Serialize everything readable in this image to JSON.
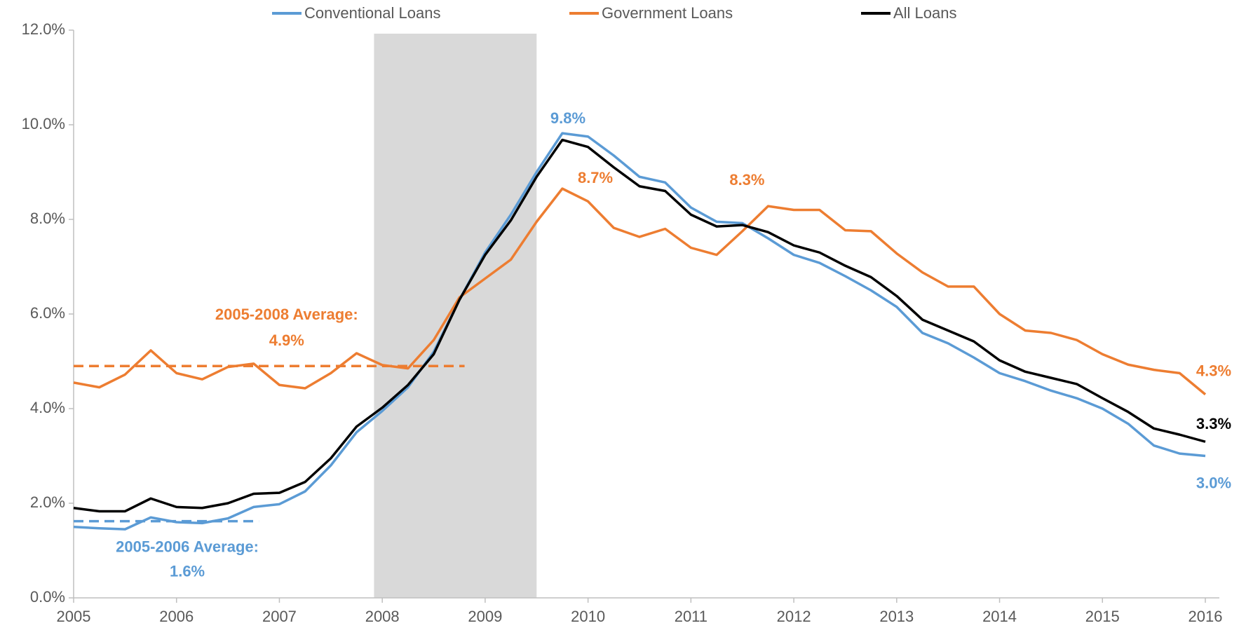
{
  "chart_data": {
    "type": "line",
    "x": [
      2005,
      2005.25,
      2005.5,
      2005.75,
      2006,
      2006.25,
      2006.5,
      2006.75,
      2007,
      2007.25,
      2007.5,
      2007.75,
      2008,
      2008.25,
      2008.5,
      2008.75,
      2009,
      2009.25,
      2009.5,
      2009.75,
      2010,
      2010.25,
      2010.5,
      2010.75,
      2011,
      2011.25,
      2011.5,
      2011.75,
      2012,
      2012.25,
      2012.5,
      2012.75,
      2013,
      2013.25,
      2013.5,
      2013.75,
      2014,
      2014.25,
      2014.5,
      2014.75,
      2015,
      2015.25,
      2015.5,
      2015.75,
      2016
    ],
    "series": [
      {
        "name": "Conventional Loans",
        "color": "#5b9bd5",
        "values": [
          1.5,
          1.47,
          1.45,
          1.7,
          1.6,
          1.58,
          1.68,
          1.92,
          1.98,
          2.25,
          2.8,
          3.5,
          3.95,
          4.45,
          5.2,
          6.3,
          7.3,
          8.1,
          9.0,
          9.82,
          9.75,
          9.35,
          8.9,
          8.78,
          8.25,
          7.95,
          7.92,
          7.6,
          7.25,
          7.08,
          6.8,
          6.5,
          6.15,
          5.6,
          5.38,
          5.08,
          4.75,
          4.58,
          4.38,
          4.22,
          4.0,
          3.68,
          3.22,
          3.05,
          3.0
        ],
        "value_labels": [
          null,
          null,
          null,
          null,
          null,
          null,
          null,
          null,
          null,
          null,
          null,
          null,
          null,
          null,
          null,
          null,
          null,
          null,
          null,
          "9.8%",
          null,
          null,
          null,
          null,
          null,
          null,
          null,
          null,
          null,
          null,
          null,
          null,
          null,
          null,
          null,
          null,
          null,
          null,
          null,
          null,
          null,
          null,
          null,
          null,
          "3.0%"
        ]
      },
      {
        "name": "Government Loans",
        "color": "#ed7d31",
        "values": [
          4.55,
          4.45,
          4.72,
          5.23,
          4.75,
          4.62,
          4.88,
          4.95,
          4.5,
          4.43,
          4.75,
          5.17,
          4.92,
          4.85,
          5.45,
          6.35,
          6.75,
          7.15,
          7.95,
          8.65,
          8.38,
          7.82,
          7.63,
          7.8,
          7.4,
          7.25,
          7.75,
          8.28,
          8.2,
          8.2,
          7.77,
          7.75,
          7.28,
          6.88,
          6.58,
          6.58,
          6.0,
          5.65,
          5.6,
          5.45,
          5.15,
          4.93,
          4.82,
          4.75,
          4.3
        ],
        "value_labels": [
          null,
          null,
          null,
          null,
          null,
          null,
          null,
          null,
          null,
          null,
          null,
          null,
          null,
          null,
          null,
          null,
          null,
          null,
          null,
          "8.7%",
          null,
          null,
          null,
          null,
          null,
          null,
          null,
          "8.3%",
          null,
          null,
          null,
          null,
          null,
          null,
          null,
          null,
          null,
          null,
          null,
          null,
          null,
          null,
          null,
          null,
          "4.3%"
        ]
      },
      {
        "name": "All Loans",
        "color": "#000000",
        "values": [
          1.9,
          1.83,
          1.83,
          2.1,
          1.92,
          1.9,
          2.0,
          2.2,
          2.22,
          2.45,
          2.95,
          3.62,
          4.02,
          4.5,
          5.15,
          6.3,
          7.25,
          7.98,
          8.9,
          9.68,
          9.53,
          9.1,
          8.7,
          8.6,
          8.1,
          7.85,
          7.88,
          7.73,
          7.45,
          7.3,
          7.02,
          6.78,
          6.38,
          5.88,
          5.65,
          5.42,
          5.02,
          4.78,
          4.65,
          4.52,
          4.22,
          3.93,
          3.58,
          3.45,
          3.3
        ],
        "value_labels": [
          null,
          null,
          null,
          null,
          null,
          null,
          null,
          null,
          null,
          null,
          null,
          null,
          null,
          null,
          null,
          null,
          null,
          null,
          null,
          null,
          null,
          null,
          null,
          null,
          null,
          null,
          null,
          null,
          null,
          null,
          null,
          null,
          null,
          null,
          null,
          null,
          null,
          null,
          null,
          null,
          null,
          null,
          null,
          null,
          "3.3%"
        ]
      }
    ],
    "reference_lines": [
      {
        "label": "2005-2008 Average:",
        "value_label": "4.9%",
        "value": 4.9,
        "x": [
          2005,
          2008.8
        ],
        "color": "#ed7d31"
      },
      {
        "label": "2005-2006 Average:",
        "value_label": "1.6%",
        "value": 1.62,
        "x": [
          2005,
          2006.8
        ],
        "color": "#5b9bd5"
      }
    ],
    "shaded_region": {
      "x": [
        2007.92,
        2009.5
      ],
      "color": "#d9d9d9"
    },
    "xlim": [
      2005,
      2016
    ],
    "xticks": [
      2005,
      2006,
      2007,
      2008,
      2009,
      2010,
      2011,
      2012,
      2013,
      2014,
      2015,
      2016
    ],
    "ylim": [
      0,
      12
    ],
    "yticks": [
      {
        "value": 0,
        "label": "0.0%"
      },
      {
        "value": 2,
        "label": "2.0%"
      },
      {
        "value": 4,
        "label": "4.0%"
      },
      {
        "value": 6,
        "label": "6.0%"
      },
      {
        "value": 8,
        "label": "8.0%"
      },
      {
        "value": 10,
        "label": "10.0%"
      },
      {
        "value": 12,
        "label": "12.0%"
      }
    ],
    "grid": false,
    "legend": "top"
  }
}
